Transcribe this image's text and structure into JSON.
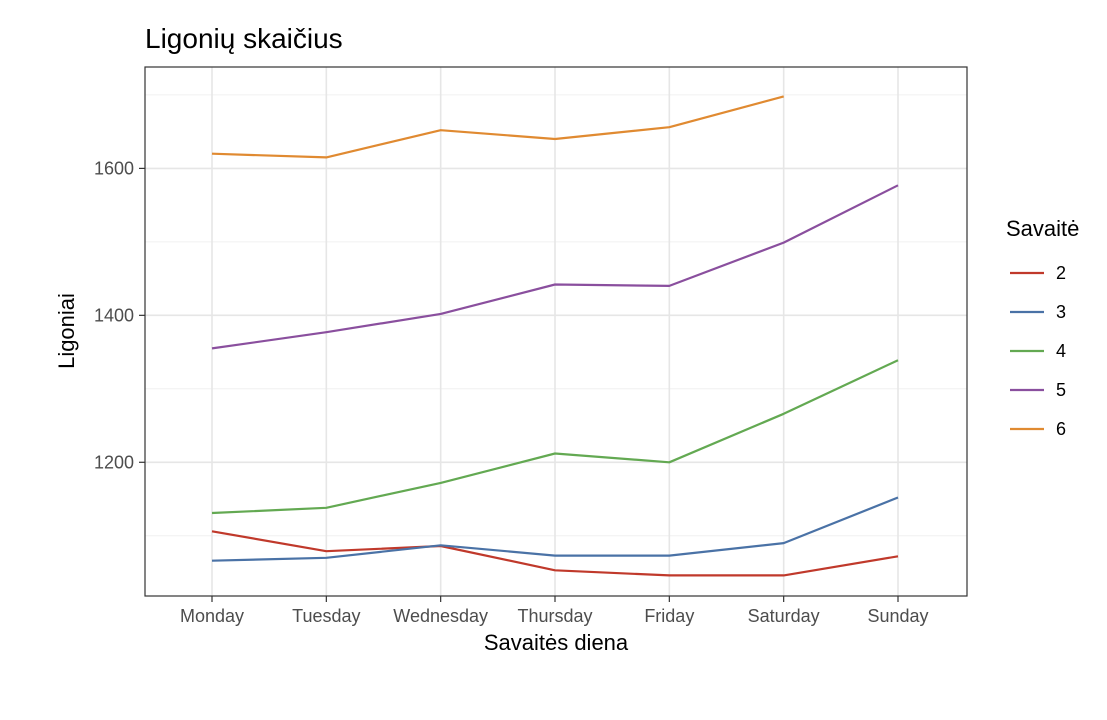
{
  "chart_data": {
    "type": "line",
    "title": "Ligonių skaičius",
    "xlabel": "Savaitės diena",
    "ylabel": "Ligoniai",
    "categories": [
      "Monday",
      "Tuesday",
      "Wednesday",
      "Thursday",
      "Friday",
      "Saturday",
      "Sunday"
    ],
    "ylim": [
      1018,
      1738
    ],
    "yticks": [
      1200,
      1400,
      1600
    ],
    "grid": true,
    "legend": {
      "title": "Savaitė",
      "position": "right"
    },
    "series": [
      {
        "name": "2",
        "color": "#c0392b",
        "values": [
          1106,
          1079,
          1086,
          1053,
          1046,
          1046,
          1072
        ]
      },
      {
        "name": "3",
        "color": "#4a72a6",
        "values": [
          1066,
          1070,
          1087,
          1073,
          1073,
          1090,
          1152
        ]
      },
      {
        "name": "4",
        "color": "#63a952",
        "values": [
          1131,
          1138,
          1172,
          1212,
          1200,
          1266,
          1339
        ]
      },
      {
        "name": "5",
        "color": "#8a4f9e",
        "values": [
          1355,
          1377,
          1402,
          1442,
          1440,
          1499,
          1577
        ]
      },
      {
        "name": "6",
        "color": "#e08a31",
        "values": [
          1620,
          1615,
          1652,
          1640,
          1656,
          1698,
          null
        ]
      }
    ]
  }
}
